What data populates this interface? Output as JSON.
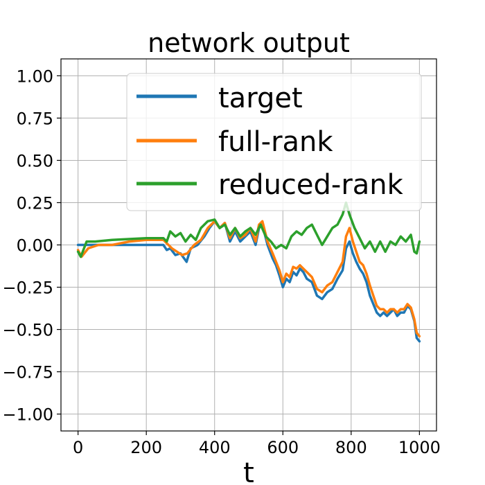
{
  "chart_data": {
    "type": "line",
    "title": "network output",
    "xlabel": "t",
    "ylabel": "",
    "xlim": [
      -50,
      1050
    ],
    "ylim": [
      -1.1,
      1.1
    ],
    "xticks": [
      0,
      200,
      400,
      600,
      800,
      1000
    ],
    "yticks": [
      -1.0,
      -0.75,
      -0.5,
      -0.25,
      0.0,
      0.25,
      0.5,
      0.75,
      1.0
    ],
    "xtick_labels": [
      "0",
      "200",
      "400",
      "600",
      "800",
      "1000"
    ],
    "ytick_labels": [
      "−1.00",
      "−0.75",
      "−0.50",
      "−0.25",
      "0.00",
      "0.25",
      "0.50",
      "0.75",
      "1.00"
    ],
    "grid": true,
    "legend_position": "upper-right",
    "series": [
      {
        "name": "target",
        "color": "#1f77b4",
        "points": [
          [
            0,
            0.0
          ],
          [
            250,
            0.0
          ],
          [
            260,
            -0.03
          ],
          [
            270,
            -0.02
          ],
          [
            285,
            -0.06
          ],
          [
            300,
            -0.05
          ],
          [
            318,
            -0.1
          ],
          [
            330,
            -0.02
          ],
          [
            350,
            0.0
          ],
          [
            370,
            0.05
          ],
          [
            385,
            0.1
          ],
          [
            400,
            0.14
          ],
          [
            415,
            0.1
          ],
          [
            430,
            0.13
          ],
          [
            445,
            0.02
          ],
          [
            460,
            0.08
          ],
          [
            475,
            0.02
          ],
          [
            490,
            0.05
          ],
          [
            505,
            0.08
          ],
          [
            520,
            0.0
          ],
          [
            530,
            0.1
          ],
          [
            540,
            0.12
          ],
          [
            555,
            0.0
          ],
          [
            570,
            -0.08
          ],
          [
            580,
            -0.12
          ],
          [
            590,
            -0.18
          ],
          [
            600,
            -0.25
          ],
          [
            610,
            -0.2
          ],
          [
            620,
            -0.22
          ],
          [
            630,
            -0.16
          ],
          [
            640,
            -0.18
          ],
          [
            650,
            -0.14
          ],
          [
            660,
            -0.16
          ],
          [
            670,
            -0.2
          ],
          [
            685,
            -0.22
          ],
          [
            700,
            -0.3
          ],
          [
            715,
            -0.32
          ],
          [
            730,
            -0.28
          ],
          [
            745,
            -0.26
          ],
          [
            760,
            -0.2
          ],
          [
            775,
            -0.15
          ],
          [
            785,
            -0.02
          ],
          [
            795,
            0.02
          ],
          [
            805,
            -0.05
          ],
          [
            815,
            -0.1
          ],
          [
            825,
            -0.14
          ],
          [
            835,
            -0.17
          ],
          [
            845,
            -0.22
          ],
          [
            855,
            -0.3
          ],
          [
            865,
            -0.35
          ],
          [
            875,
            -0.4
          ],
          [
            885,
            -0.42
          ],
          [
            895,
            -0.4
          ],
          [
            905,
            -0.42
          ],
          [
            915,
            -0.4
          ],
          [
            925,
            -0.38
          ],
          [
            935,
            -0.42
          ],
          [
            945,
            -0.4
          ],
          [
            955,
            -0.4
          ],
          [
            965,
            -0.36
          ],
          [
            975,
            -0.38
          ],
          [
            985,
            -0.45
          ],
          [
            992,
            -0.55
          ],
          [
            1000,
            -0.57
          ]
        ]
      },
      {
        "name": "full-rank",
        "color": "#ff7f0e",
        "points": [
          [
            0,
            -0.03
          ],
          [
            10,
            -0.07
          ],
          [
            30,
            -0.02
          ],
          [
            60,
            0.0
          ],
          [
            100,
            0.0
          ],
          [
            150,
            0.02
          ],
          [
            200,
            0.03
          ],
          [
            250,
            0.03
          ],
          [
            260,
            0.01
          ],
          [
            275,
            -0.02
          ],
          [
            290,
            -0.04
          ],
          [
            305,
            -0.06
          ],
          [
            320,
            -0.05
          ],
          [
            340,
            0.0
          ],
          [
            360,
            0.03
          ],
          [
            380,
            0.1
          ],
          [
            400,
            0.14
          ],
          [
            415,
            0.1
          ],
          [
            430,
            0.13
          ],
          [
            445,
            0.04
          ],
          [
            460,
            0.1
          ],
          [
            475,
            0.04
          ],
          [
            490,
            0.06
          ],
          [
            505,
            0.1
          ],
          [
            520,
            0.02
          ],
          [
            530,
            0.12
          ],
          [
            540,
            0.14
          ],
          [
            555,
            0.02
          ],
          [
            570,
            -0.05
          ],
          [
            580,
            -0.1
          ],
          [
            590,
            -0.15
          ],
          [
            600,
            -0.22
          ],
          [
            610,
            -0.17
          ],
          [
            620,
            -0.19
          ],
          [
            630,
            -0.13
          ],
          [
            640,
            -0.14
          ],
          [
            650,
            -0.12
          ],
          [
            660,
            -0.14
          ],
          [
            670,
            -0.16
          ],
          [
            685,
            -0.19
          ],
          [
            700,
            -0.26
          ],
          [
            715,
            -0.28
          ],
          [
            730,
            -0.24
          ],
          [
            745,
            -0.22
          ],
          [
            760,
            -0.16
          ],
          [
            775,
            -0.1
          ],
          [
            785,
            0.05
          ],
          [
            795,
            0.1
          ],
          [
            805,
            0.02
          ],
          [
            815,
            -0.04
          ],
          [
            825,
            -0.1
          ],
          [
            835,
            -0.12
          ],
          [
            845,
            -0.17
          ],
          [
            855,
            -0.24
          ],
          [
            865,
            -0.3
          ],
          [
            875,
            -0.36
          ],
          [
            885,
            -0.38
          ],
          [
            895,
            -0.38
          ],
          [
            905,
            -0.4
          ],
          [
            915,
            -0.38
          ],
          [
            925,
            -0.38
          ],
          [
            935,
            -0.4
          ],
          [
            945,
            -0.38
          ],
          [
            955,
            -0.38
          ],
          [
            965,
            -0.35
          ],
          [
            975,
            -0.37
          ],
          [
            985,
            -0.44
          ],
          [
            992,
            -0.52
          ],
          [
            1000,
            -0.54
          ]
        ]
      },
      {
        "name": "reduced-rank",
        "color": "#2ca02c",
        "points": [
          [
            0,
            -0.04
          ],
          [
            8,
            -0.07
          ],
          [
            25,
            0.02
          ],
          [
            50,
            0.02
          ],
          [
            100,
            0.03
          ],
          [
            150,
            0.035
          ],
          [
            200,
            0.04
          ],
          [
            250,
            0.04
          ],
          [
            260,
            0.02
          ],
          [
            270,
            0.08
          ],
          [
            285,
            0.05
          ],
          [
            300,
            0.07
          ],
          [
            315,
            0.02
          ],
          [
            330,
            0.06
          ],
          [
            345,
            0.03
          ],
          [
            360,
            0.1
          ],
          [
            380,
            0.14
          ],
          [
            400,
            0.15
          ],
          [
            415,
            0.1
          ],
          [
            430,
            0.12
          ],
          [
            445,
            0.06
          ],
          [
            460,
            0.1
          ],
          [
            475,
            0.05
          ],
          [
            490,
            0.08
          ],
          [
            505,
            0.1
          ],
          [
            520,
            0.06
          ],
          [
            535,
            0.12
          ],
          [
            550,
            0.05
          ],
          [
            565,
            0.02
          ],
          [
            580,
            -0.02
          ],
          [
            595,
            0.0
          ],
          [
            610,
            -0.02
          ],
          [
            625,
            0.05
          ],
          [
            640,
            0.08
          ],
          [
            655,
            0.06
          ],
          [
            670,
            0.1
          ],
          [
            685,
            0.12
          ],
          [
            700,
            0.06
          ],
          [
            715,
            0.0
          ],
          [
            730,
            0.05
          ],
          [
            745,
            0.1
          ],
          [
            760,
            0.12
          ],
          [
            775,
            0.18
          ],
          [
            785,
            0.25
          ],
          [
            795,
            0.18
          ],
          [
            810,
            0.1
          ],
          [
            825,
            0.04
          ],
          [
            840,
            -0.02
          ],
          [
            855,
            0.02
          ],
          [
            870,
            -0.04
          ],
          [
            885,
            0.02
          ],
          [
            900,
            -0.04
          ],
          [
            915,
            0.02
          ],
          [
            930,
            0.0
          ],
          [
            945,
            0.05
          ],
          [
            960,
            0.02
          ],
          [
            975,
            0.06
          ],
          [
            985,
            -0.04
          ],
          [
            992,
            -0.05
          ],
          [
            1000,
            0.02
          ]
        ]
      }
    ]
  }
}
